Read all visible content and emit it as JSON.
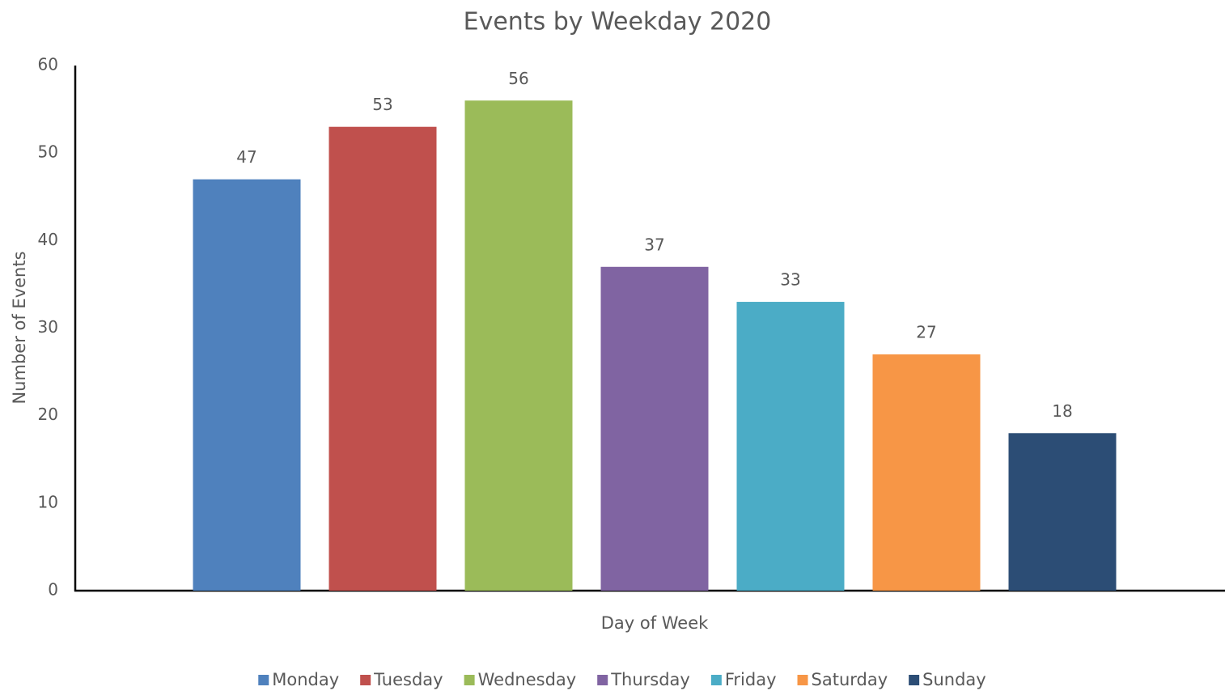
{
  "chart_data": {
    "type": "bar",
    "title": "Events by Weekday 2020",
    "x_label": "Day of Week",
    "y_label": "Number of Events",
    "categories": [
      null
    ],
    "series": [
      {
        "name": "Monday",
        "color": "#4f81bd",
        "values": [
          47
        ]
      },
      {
        "name": "Tuesday",
        "color": "#c0504d",
        "values": [
          53
        ]
      },
      {
        "name": "Wednesday",
        "color": "#9bbb59",
        "values": [
          56
        ]
      },
      {
        "name": "Thursday",
        "color": "#8064a2",
        "values": [
          37
        ]
      },
      {
        "name": "Friday",
        "color": "#4bacc6",
        "values": [
          33
        ]
      },
      {
        "name": "Saturday",
        "color": "#f79646",
        "values": [
          27
        ]
      },
      {
        "name": "Sunday",
        "color": "#2c4d75",
        "values": [
          18
        ]
      }
    ],
    "ylim": [
      0,
      60
    ],
    "yticks": [
      0,
      10,
      20,
      30,
      40,
      50,
      60
    ],
    "grid": false,
    "legend": "bottom"
  }
}
